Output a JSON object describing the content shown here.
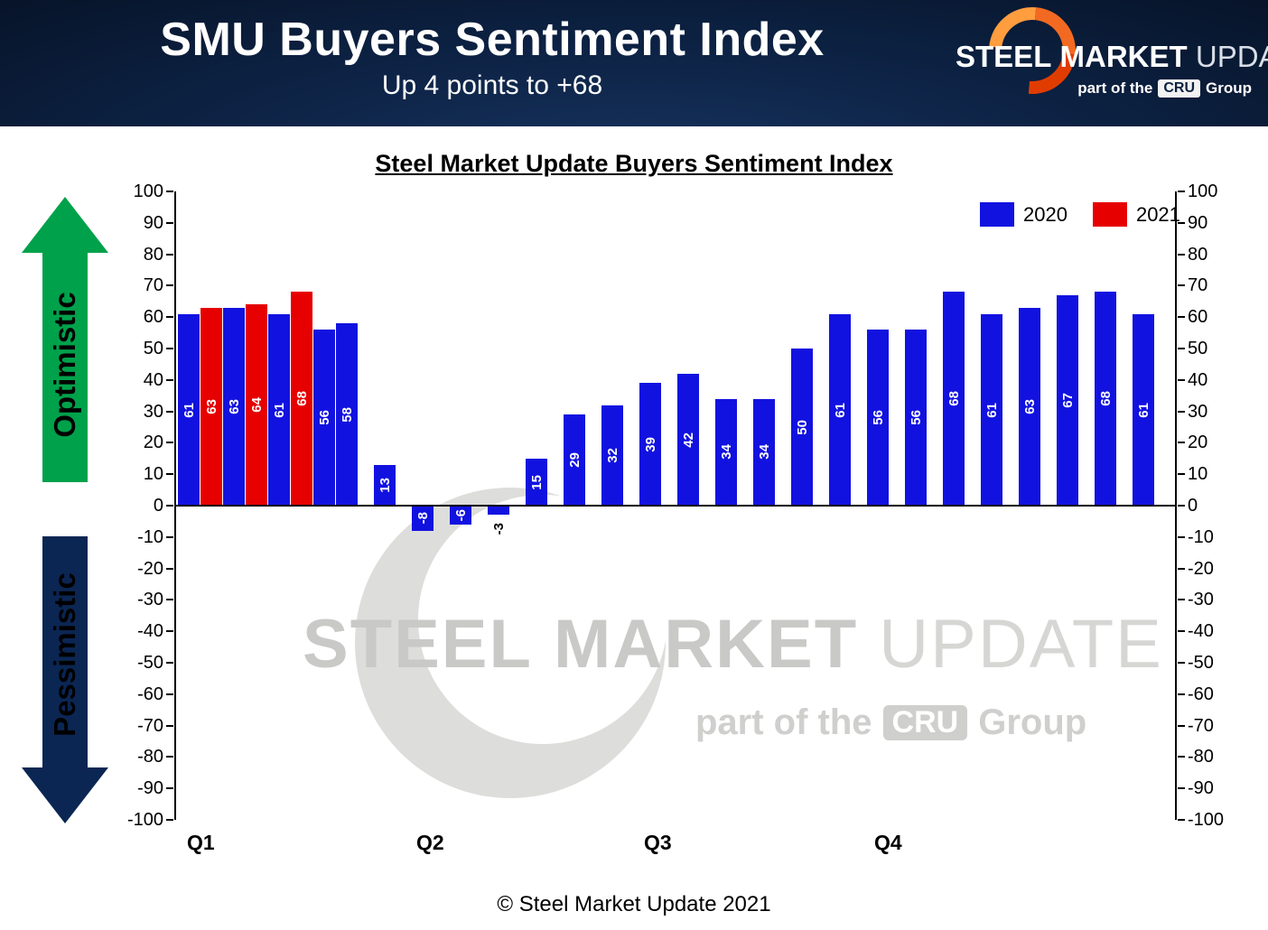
{
  "header": {
    "title": "SMU Buyers Sentiment Index",
    "subtitle": "Up 4 points to +68",
    "logo": {
      "steel": "STEEL",
      "market": "MARKET",
      "update": "UPDATE",
      "part_of": "part of the",
      "cru": "CRU",
      "group": "Group"
    }
  },
  "axis_annotations": {
    "up": "Optimistic",
    "down": "Pessimistic"
  },
  "chart_data": {
    "type": "bar",
    "title": "Steel Market Update Buyers Sentiment Index",
    "ylim": [
      -100,
      100
    ],
    "yticks": [
      100,
      90,
      80,
      70,
      60,
      50,
      40,
      30,
      20,
      10,
      0,
      -10,
      -20,
      -30,
      -40,
      -50,
      -60,
      -70,
      -80,
      -90,
      -100
    ],
    "x_axis_labels": [
      "Q1",
      "Q2",
      "Q3",
      "Q4"
    ],
    "legend": [
      {
        "label": "2020",
        "color": "#1212E0"
      },
      {
        "label": "2021",
        "color": "#E60000"
      }
    ],
    "bars": [
      {
        "value": 61,
        "series": "2020"
      },
      {
        "value": 63,
        "series": "2021"
      },
      {
        "value": 63,
        "series": "2020"
      },
      {
        "value": 64,
        "series": "2021"
      },
      {
        "value": 61,
        "series": "2020"
      },
      {
        "value": 68,
        "series": "2021"
      },
      {
        "value": 56,
        "series": "2020"
      },
      {
        "value": 58,
        "series": "2020"
      },
      {
        "value": 13,
        "series": "2020"
      },
      {
        "value": -8,
        "series": "2020"
      },
      {
        "value": -6,
        "series": "2020"
      },
      {
        "value": -3,
        "series": "2020"
      },
      {
        "value": 15,
        "series": "2020"
      },
      {
        "value": 29,
        "series": "2020"
      },
      {
        "value": 32,
        "series": "2020"
      },
      {
        "value": 39,
        "series": "2020"
      },
      {
        "value": 42,
        "series": "2020"
      },
      {
        "value": 34,
        "series": "2020"
      },
      {
        "value": 34,
        "series": "2020"
      },
      {
        "value": 50,
        "series": "2020"
      },
      {
        "value": 61,
        "series": "2020"
      },
      {
        "value": 56,
        "series": "2020"
      },
      {
        "value": 56,
        "series": "2020"
      },
      {
        "value": 68,
        "series": "2020"
      },
      {
        "value": 61,
        "series": "2020"
      },
      {
        "value": 63,
        "series": "2020"
      },
      {
        "value": 67,
        "series": "2020"
      },
      {
        "value": 68,
        "series": "2020"
      },
      {
        "value": 61,
        "series": "2020"
      }
    ]
  },
  "watermark": {
    "steel": "STEEL",
    "market": "MARKET",
    "update": "UPDATE",
    "part_of": "part of the",
    "cru": "CRU",
    "group": "Group"
  },
  "footer": "© Steel Market Update 2021"
}
